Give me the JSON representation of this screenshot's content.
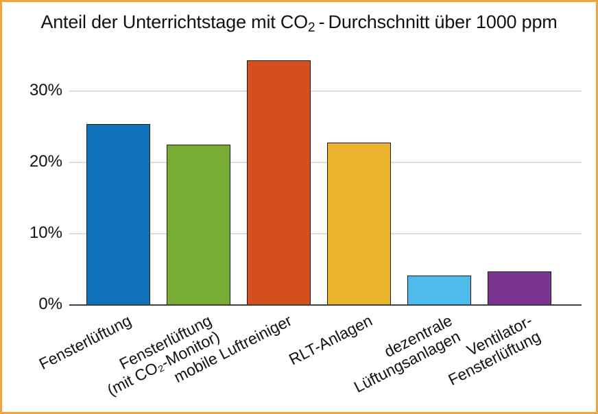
{
  "frame": {
    "border_color": "#f0a43c",
    "background_color": "#ffffff"
  },
  "title_parts": {
    "pre": "Anteil der Unterrichtstage mit CO",
    "sub": "2",
    "post": " - Durchschnitt über 1000 ppm"
  },
  "chart_data": {
    "type": "bar",
    "title": "Anteil der Unterrichtstage mit CO₂-Durchschnitt über 1000 ppm",
    "categories": [
      "Fensterlüftung",
      "Fensterlüftung\n(mit CO₂-Monitor)",
      "mobile Luftreiniger",
      "RLT-Anlagen",
      "dezentrale\nLüftungsanlagen",
      "Ventilator-\nFensterlüftung"
    ],
    "values": [
      25.4,
      22.5,
      34.3,
      22.8,
      4.1,
      4.7
    ],
    "unit": "%",
    "bar_colors": [
      "#1072b9",
      "#77ab33",
      "#d4511e",
      "#eab32b",
      "#4fbbea",
      "#7b3591"
    ],
    "bar_outline_color": "#1a1a1a",
    "yticks": [
      {
        "value": 0,
        "label": "0%"
      },
      {
        "value": 10,
        "label": "10%"
      },
      {
        "value": 20,
        "label": "20%"
      },
      {
        "value": 30,
        "label": "30%"
      }
    ],
    "ylim": [
      0,
      35
    ],
    "xlabel": "",
    "ylabel": "",
    "grid": true,
    "gridline_color": "#dcdcdc",
    "axis_color": "#404040",
    "legend": null
  }
}
